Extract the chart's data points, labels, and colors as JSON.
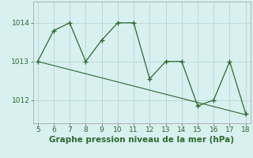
{
  "x": [
    5,
    6,
    7,
    8,
    9,
    10,
    11,
    12,
    13,
    14,
    15,
    16,
    17,
    18
  ],
  "y": [
    1013.0,
    1013.8,
    1014.0,
    1013.0,
    1013.55,
    1014.0,
    1014.0,
    1012.55,
    1013.0,
    1013.0,
    1011.85,
    1012.0,
    1013.0,
    1011.65
  ],
  "trend_x": [
    5,
    18
  ],
  "trend_y": [
    1013.0,
    1011.62
  ],
  "line_color": "#2d6a2d",
  "bg_color": "#d8f0f0",
  "xlabel": "Graphe pression niveau de la mer (hPa)",
  "yticks": [
    1012,
    1013,
    1014
  ],
  "xlim": [
    4.7,
    18.3
  ],
  "ylim": [
    1011.4,
    1014.55
  ],
  "grid_color": "#b8d4d4",
  "xlabel_fontsize": 7.5,
  "tick_fontsize": 6.5
}
